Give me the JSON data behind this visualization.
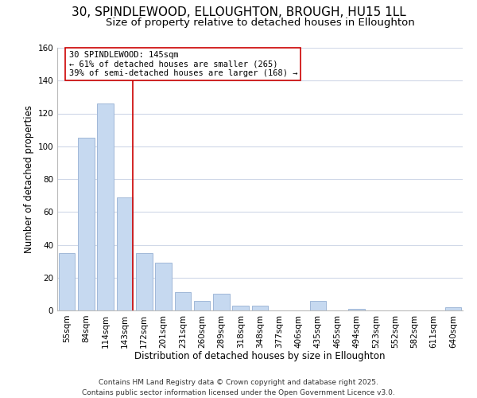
{
  "title": "30, SPINDLEWOOD, ELLOUGHTON, BROUGH, HU15 1LL",
  "subtitle": "Size of property relative to detached houses in Elloughton",
  "xlabel": "Distribution of detached houses by size in Elloughton",
  "ylabel": "Number of detached properties",
  "categories": [
    "55sqm",
    "84sqm",
    "114sqm",
    "143sqm",
    "172sqm",
    "201sqm",
    "231sqm",
    "260sqm",
    "289sqm",
    "318sqm",
    "348sqm",
    "377sqm",
    "406sqm",
    "435sqm",
    "465sqm",
    "494sqm",
    "523sqm",
    "552sqm",
    "582sqm",
    "611sqm",
    "640sqm"
  ],
  "values": [
    35,
    105,
    126,
    69,
    35,
    29,
    11,
    6,
    10,
    3,
    3,
    0,
    0,
    6,
    0,
    1,
    0,
    0,
    0,
    0,
    2
  ],
  "bar_color": "#c6d9f0",
  "bar_edge_color": "#a0b8d8",
  "ylim": [
    0,
    160
  ],
  "yticks": [
    0,
    20,
    40,
    60,
    80,
    100,
    120,
    140,
    160
  ],
  "vline_x_index": 3,
  "vline_color": "#cc0000",
  "annotation_text": "30 SPINDLEWOOD: 145sqm\n← 61% of detached houses are smaller (265)\n39% of semi-detached houses are larger (168) →",
  "annotation_box_color": "#ffffff",
  "annotation_box_edge_color": "#cc0000",
  "footer_line1": "Contains HM Land Registry data © Crown copyright and database right 2025.",
  "footer_line2": "Contains public sector information licensed under the Open Government Licence v3.0.",
  "background_color": "#ffffff",
  "grid_color": "#d0d8e8",
  "title_fontsize": 11,
  "subtitle_fontsize": 9.5,
  "axis_label_fontsize": 8.5,
  "tick_fontsize": 7.5,
  "annotation_fontsize": 7.5,
  "footer_fontsize": 6.5
}
